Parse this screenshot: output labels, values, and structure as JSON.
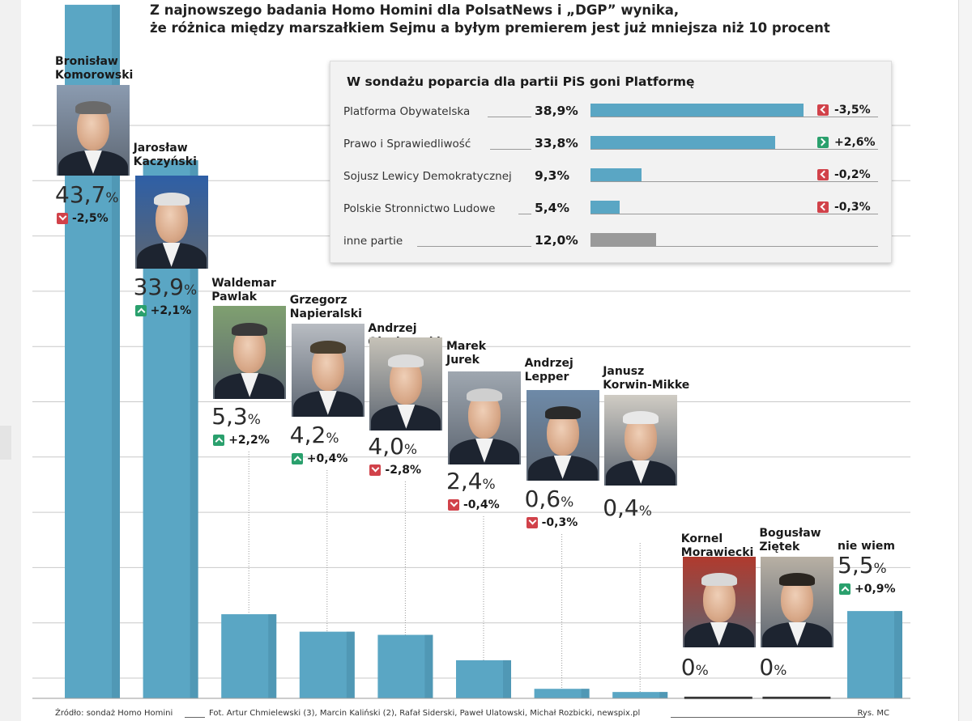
{
  "headline": {
    "line1": "Z najnowszego badania Homo Homini dla PolsatNews i „DGP” wynika,",
    "line2": "że różnica między marszałkiem Sejmu a byłym premierem jest już mniejsza niż 10 procent"
  },
  "chart_data": {
    "type": "bar",
    "title": "Z najnowszego badania Homo Homini dla PolsatNews i „DGP” wynika, że różnica między marszałkiem Sejmu a byłym premierem jest już mniejsza niż 10 procent",
    "categories": [
      "Bronisław Komorowski",
      "Jarosław Kaczyński",
      "Waldemar Pawlak",
      "Grzegorz Napieralski",
      "Andrzej Olechowski",
      "Marek Jurek",
      "Andrzej Lepper",
      "Janusz Korwin-Mikke",
      "Kornel Morawiecki",
      "Bogusław Ziętek",
      "nie wiem"
    ],
    "values": [
      43.7,
      33.9,
      5.3,
      4.2,
      4.0,
      2.4,
      0.6,
      0.4,
      0,
      0,
      5.5
    ],
    "ylim": [
      0,
      44
    ],
    "xlabel": "",
    "ylabel": "",
    "bar_color": "#5aa6c4",
    "gridlines": true,
    "candidates": [
      {
        "name": "Bronisław\nKomorowski",
        "value_num": "43,7",
        "value_unit": "%",
        "change": "-2,5%",
        "dir": "down"
      },
      {
        "name": "Jarosław\nKaczyński",
        "value_num": "33,9",
        "value_unit": "%",
        "change": "+2,1%",
        "dir": "up"
      },
      {
        "name": "Waldemar\nPawlak",
        "value_num": "5,3",
        "value_unit": "%",
        "change": "+2,2%",
        "dir": "up"
      },
      {
        "name": "Grzegorz\nNapieralski",
        "value_num": "4,2",
        "value_unit": "%",
        "change": "+0,4%",
        "dir": "up"
      },
      {
        "name": "Andrzej\nOlechowski",
        "value_num": "4,0",
        "value_unit": "%",
        "change": "-2,8%",
        "dir": "down"
      },
      {
        "name": "Marek\nJurek",
        "value_num": "2,4",
        "value_unit": "%",
        "change": "-0,4%",
        "dir": "down"
      },
      {
        "name": "Andrzej\nLepper",
        "value_num": "0,6",
        "value_unit": "%",
        "change": "-0,3%",
        "dir": "down"
      },
      {
        "name": "Janusz\nKorwin-Mikke",
        "value_num": "0,4",
        "value_unit": "%",
        "change": "",
        "dir": ""
      },
      {
        "name": "Kornel\nMorawiecki",
        "value_num": "0",
        "value_unit": "%",
        "change": "",
        "dir": ""
      },
      {
        "name": "Bogusław\nZiętek",
        "value_num": "0",
        "value_unit": "%",
        "change": "",
        "dir": ""
      },
      {
        "name": "nie wiem",
        "value_num": "5,5",
        "value_unit": "%",
        "change": "+0,9%",
        "dir": "up"
      }
    ],
    "inset": {
      "type": "bar",
      "title": "W sondażu poparcia dla partii PiS goni Platformę",
      "categories": [
        "Platforma Obywatelska",
        "Prawo i Sprawiedliwość",
        "Sojusz Lewicy Demokratycznej",
        "Polskie Stronnictwo Ludowe",
        "inne partie"
      ],
      "values": [
        38.9,
        33.8,
        9.3,
        5.4,
        12.0
      ],
      "labels": [
        "38,9%",
        "33,8%",
        "9,3%",
        "5,4%",
        "12,0%"
      ],
      "changes": [
        "-3,5%",
        "+2,6%",
        "-0,2%",
        "-0,3%",
        ""
      ],
      "dirs": [
        "left",
        "right",
        "left",
        "left",
        ""
      ],
      "colors": [
        "#5aa6c4",
        "#5aa6c4",
        "#5aa6c4",
        "#5aa6c4",
        "#9a9a9a"
      ],
      "xlim": [
        0,
        40
      ]
    }
  },
  "footer": {
    "source": "Źródło: sondaż Homo Homini",
    "photos": "Fot. Artur Chmielewski (3), Marcin Kaliński (2), Rafał Siderski, Paweł Ulatowski, Michał Rozbicki, newspix.pl",
    "author": "Rys. MC"
  }
}
